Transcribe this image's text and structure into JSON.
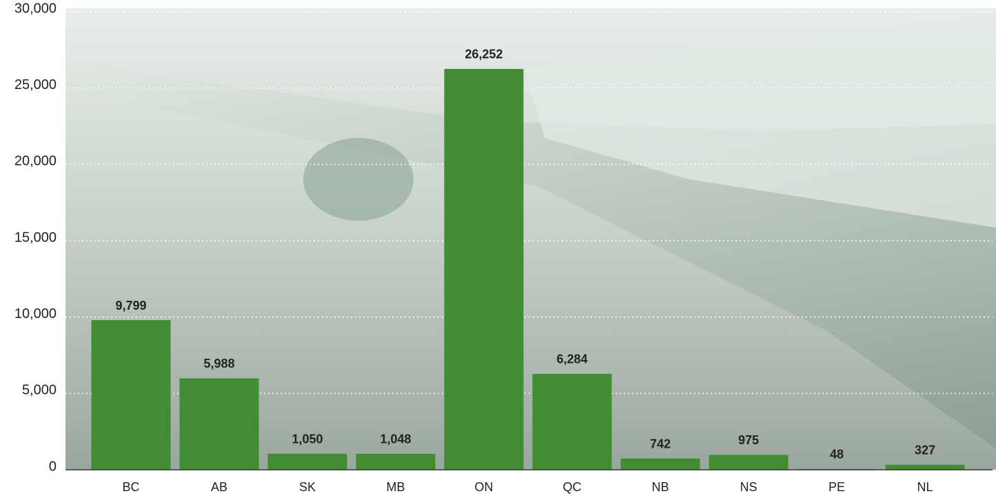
{
  "chart_data": {
    "type": "bar",
    "categories": [
      "BC",
      "AB",
      "SK",
      "MB",
      "ON",
      "QC",
      "NB",
      "NS",
      "PE",
      "NL"
    ],
    "values": [
      9799,
      5988,
      1050,
      1048,
      26252,
      6284,
      742,
      975,
      48,
      327
    ],
    "value_labels": [
      "9,799",
      "5,988",
      "1,050",
      "1,048",
      "26,252",
      "6,284",
      "742",
      "975",
      "48",
      "327"
    ],
    "color": "#438c33",
    "ylim": [
      0,
      30000
    ],
    "yticks": [
      0,
      {
        "value": 5000,
        "label": "5,000"
      },
      {
        "value": 10000,
        "label": "10,000"
      },
      {
        "value": 15000,
        "label": "15,000"
      },
      {
        "value": 20000,
        "label": "20,000"
      },
      {
        "value": 25000,
        "label": "25,000"
      },
      {
        "value": 30000,
        "label": "30,000"
      }
    ],
    "grid": true
  }
}
